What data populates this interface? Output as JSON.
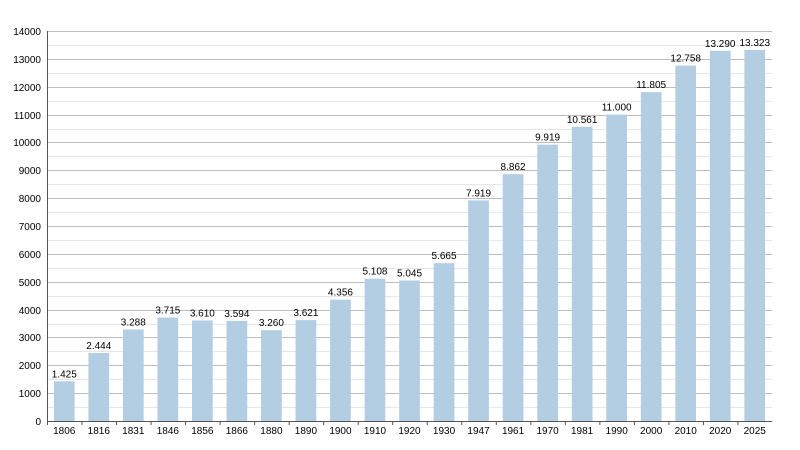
{
  "chart_data": {
    "type": "bar",
    "title": "",
    "xlabel": "",
    "ylabel": "",
    "categories": [
      "1806",
      "1816",
      "1831",
      "1846",
      "1856",
      "1866",
      "1880",
      "1890",
      "1900",
      "1910",
      "1920",
      "1930",
      "1947",
      "1961",
      "1970",
      "1981",
      "1990",
      "2000",
      "2010",
      "2020",
      "2025"
    ],
    "values": [
      1425,
      2444,
      3288,
      3715,
      3610,
      3594,
      3260,
      3621,
      4356,
      5108,
      5045,
      5665,
      7919,
      8862,
      9919,
      10561,
      11000,
      11805,
      12758,
      13290,
      13323
    ],
    "value_labels": [
      "1.425",
      "2.444",
      "3.288",
      "3.715",
      "3.610",
      "3.594",
      "3.260",
      "3.621",
      "4.356",
      "5.108",
      "5.045",
      "5.665",
      "7.919",
      "8.862",
      "9.919",
      "10.561",
      "11.000",
      "11.805",
      "12.758",
      "13.290",
      "13.323"
    ],
    "ylim": [
      0,
      14000
    ],
    "yticks": [
      0,
      1000,
      2000,
      3000,
      4000,
      5000,
      6000,
      7000,
      8000,
      9000,
      10000,
      11000,
      12000,
      13000,
      14000
    ],
    "ytick_labels": [
      "0",
      "1000",
      "2000",
      "3000",
      "4000",
      "5000",
      "6000",
      "7000",
      "8000",
      "9000",
      "10000",
      "11000",
      "12000",
      "13000",
      "14000"
    ],
    "grid": true,
    "legend": "none",
    "bar_color": "#b3cde3"
  }
}
